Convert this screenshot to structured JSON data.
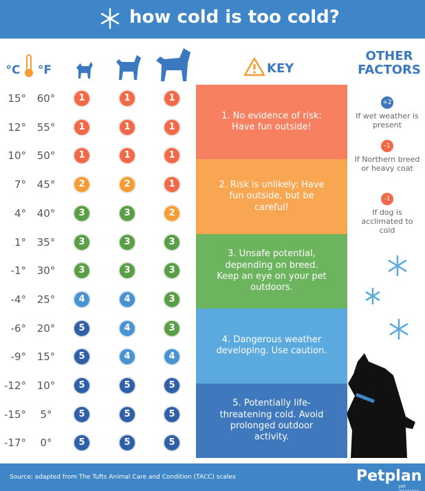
{
  "header": {
    "title": "how cold is too cold?"
  },
  "columns": {
    "celsius": "°C",
    "fahrenheit": "°F",
    "key": "KEY",
    "other": "OTHER FACTORS"
  },
  "table": {
    "rows": [
      {
        "c": "15°",
        "f": "60°",
        "risk": [
          1,
          1,
          1
        ]
      },
      {
        "c": "12°",
        "f": "55°",
        "risk": [
          1,
          1,
          1
        ]
      },
      {
        "c": "10°",
        "f": "50°",
        "risk": [
          1,
          1,
          1
        ]
      },
      {
        "c": "7°",
        "f": "45°",
        "risk": [
          2,
          2,
          1
        ]
      },
      {
        "c": "4°",
        "f": "40°",
        "risk": [
          3,
          3,
          2
        ]
      },
      {
        "c": "1°",
        "f": "35°",
        "risk": [
          3,
          3,
          3
        ]
      },
      {
        "c": "-1°",
        "f": "30°",
        "risk": [
          3,
          3,
          3
        ]
      },
      {
        "c": "-4°",
        "f": "25°",
        "risk": [
          4,
          4,
          3
        ]
      },
      {
        "c": "-6°",
        "f": "20°",
        "risk": [
          5,
          4,
          3
        ]
      },
      {
        "c": "-9°",
        "f": "15°",
        "risk": [
          5,
          4,
          4
        ]
      },
      {
        "c": "-12°",
        "f": "10°",
        "risk": [
          5,
          5,
          5
        ]
      },
      {
        "c": "-15°",
        "f": "5°",
        "risk": [
          5,
          5,
          5
        ]
      },
      {
        "c": "-17°",
        "f": "0°",
        "risk": [
          5,
          5,
          5
        ]
      }
    ]
  },
  "key": {
    "items": [
      {
        "text": "1. No evidence of risk: Have fun outside!",
        "color": "#f6805f",
        "circle_color": "#f06a4a"
      },
      {
        "text": "2. Risk is unlikely: Have fun outside, but be careful!",
        "color": "#f9a653",
        "circle_color": "#f59c35"
      },
      {
        "text": "3. Unsafe potential, depending on breed. Keep an eye on your pet outdoors.",
        "color": "#6cb45d",
        "circle_color": "#5a9f47"
      },
      {
        "text": "4. Dangerous weather developing. Use caution.",
        "color": "#5aaae0",
        "circle_color": "#4993d2"
      },
      {
        "text": "5. Potentially life-threatening cold. Avoid prolonged outdoor activity.",
        "color": "#3f78bd",
        "circle_color": "#2f5fa6"
      }
    ]
  },
  "other_factors": [
    {
      "adjust": "+2",
      "text": "If wet weather is present",
      "color": "#3f78bd"
    },
    {
      "adjust": "-1",
      "text": "If Northern breed or heavy coat",
      "color": "#f06a4a"
    },
    {
      "adjust": "-1",
      "text": "If dog is acclimated to cold",
      "color": "#f06a4a"
    }
  ],
  "footer": {
    "source": "Source: adapted from The Tufts Animal Care and Condition (TACC) scales",
    "brand": "Petplan",
    "tagline": "pet insurance"
  }
}
